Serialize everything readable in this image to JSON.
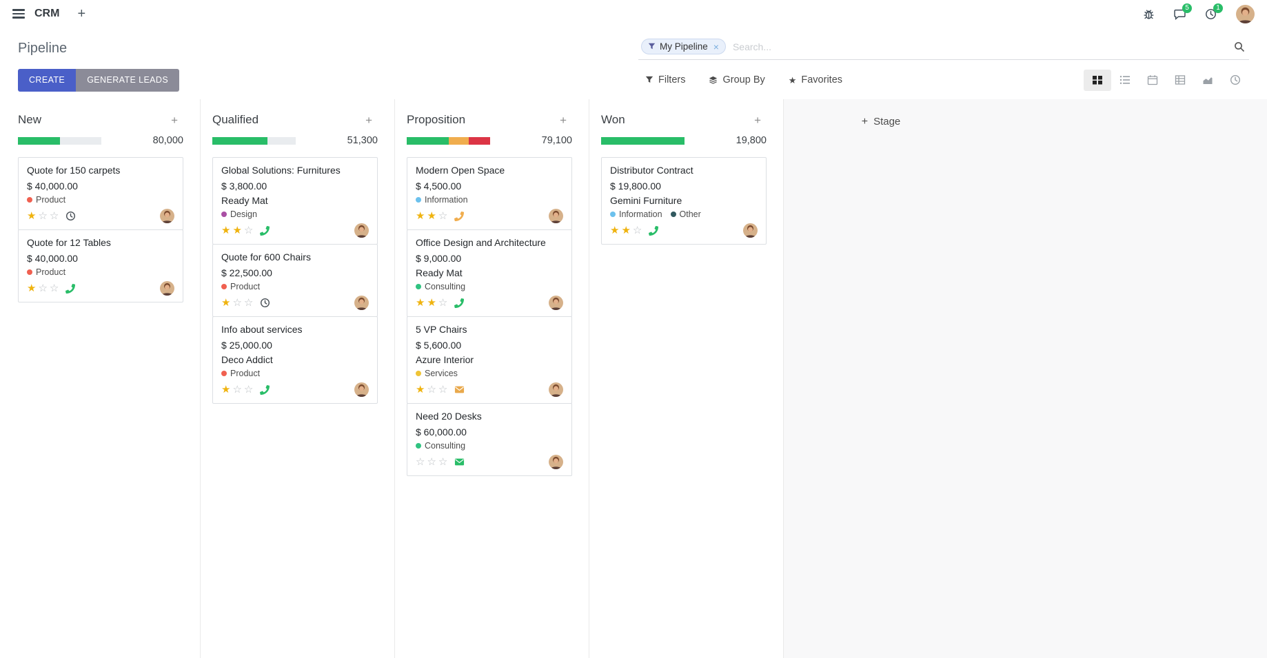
{
  "topbar": {
    "app_name": "CRM",
    "message_badge": "5",
    "activity_badge": "1"
  },
  "control_panel": {
    "title": "Pipeline",
    "create_label": "CREATE",
    "generate_leads_label": "GENERATE LEADS",
    "filters_label": "Filters",
    "group_by_label": "Group By",
    "favorites_label": "Favorites",
    "search": {
      "facet_label": "My Pipeline",
      "placeholder": "Search..."
    }
  },
  "icons": {
    "plus": "+",
    "close": "×",
    "star_filled": "★",
    "star_empty": "☆"
  },
  "colors": {
    "primary": "#4a5fc8",
    "success": "#29bd68",
    "warning": "#f0ad4e",
    "danger": "#dc3545"
  },
  "kanban": {
    "add_stage_label": "Stage",
    "columns": [
      {
        "name": "New",
        "total": "80,000",
        "progress": [
          {
            "color": "#29bd68",
            "pct": 50
          }
        ],
        "cards": [
          {
            "title": "Quote for 150 carpets",
            "amount": "$ 40,000.00",
            "partner": "",
            "tags": [
              {
                "label": "Product",
                "color": "#f06050"
              }
            ],
            "stars": 1,
            "activity": {
              "icon": "clock",
              "color": "#495057"
            }
          },
          {
            "title": "Quote for 12 Tables",
            "amount": "$ 40,000.00",
            "partner": "",
            "tags": [
              {
                "label": "Product",
                "color": "#f06050"
              }
            ],
            "stars": 1,
            "activity": {
              "icon": "phone",
              "color": "#29bd68"
            }
          }
        ]
      },
      {
        "name": "Qualified",
        "total": "51,300",
        "progress": [
          {
            "color": "#29bd68",
            "pct": 66
          }
        ],
        "cards": [
          {
            "title": "Global Solutions: Furnitures",
            "amount": "$ 3,800.00",
            "partner": "Ready Mat",
            "tags": [
              {
                "label": "Design",
                "color": "#a94fa4"
              }
            ],
            "stars": 2,
            "activity": {
              "icon": "phone",
              "color": "#29bd68"
            }
          },
          {
            "title": "Quote for 600 Chairs",
            "amount": "$ 22,500.00",
            "partner": "",
            "tags": [
              {
                "label": "Product",
                "color": "#f06050"
              }
            ],
            "stars": 1,
            "activity": {
              "icon": "clock",
              "color": "#495057"
            }
          },
          {
            "title": "Info about services",
            "amount": "$ 25,000.00",
            "partner": "Deco Addict",
            "tags": [
              {
                "label": "Product",
                "color": "#f06050"
              }
            ],
            "stars": 1,
            "activity": {
              "icon": "phone",
              "color": "#29bd68"
            }
          }
        ]
      },
      {
        "name": "Proposition",
        "total": "79,100",
        "progress": [
          {
            "color": "#29bd68",
            "pct": 50
          },
          {
            "color": "#f0ad4e",
            "pct": 24
          },
          {
            "color": "#dc3545",
            "pct": 26
          }
        ],
        "cards": [
          {
            "title": "Modern Open Space",
            "amount": "$ 4,500.00",
            "partner": "",
            "tags": [
              {
                "label": "Information",
                "color": "#6cc1ed"
              }
            ],
            "stars": 2,
            "activity": {
              "icon": "phone",
              "color": "#f0ad4e"
            }
          },
          {
            "title": "Office Design and Architecture",
            "amount": "$ 9,000.00",
            "partner": "Ready Mat",
            "tags": [
              {
                "label": "Consulting",
                "color": "#30c381"
              }
            ],
            "stars": 2,
            "activity": {
              "icon": "phone",
              "color": "#29bd68"
            }
          },
          {
            "title": "5 VP Chairs",
            "amount": "$ 5,600.00",
            "partner": "Azure Interior",
            "tags": [
              {
                "label": "Services",
                "color": "#efc437"
              }
            ],
            "stars": 1,
            "activity": {
              "icon": "envelope",
              "color": "#e9a94c"
            }
          },
          {
            "title": "Need 20 Desks",
            "amount": "$ 60,000.00",
            "partner": "",
            "tags": [
              {
                "label": "Consulting",
                "color": "#30c381"
              }
            ],
            "stars": 0,
            "activity": {
              "icon": "envelope",
              "color": "#29bd68"
            }
          }
        ]
      },
      {
        "name": "Won",
        "total": "19,800",
        "progress": [
          {
            "color": "#29bd68",
            "pct": 100
          }
        ],
        "cards": [
          {
            "title": "Distributor Contract",
            "amount": "$ 19,800.00",
            "partner": "Gemini Furniture",
            "tags": [
              {
                "label": "Information",
                "color": "#6cc1ed"
              },
              {
                "label": "Other",
                "color": "#31595f"
              }
            ],
            "stars": 2,
            "activity": {
              "icon": "phone",
              "color": "#29bd68"
            }
          }
        ]
      }
    ]
  }
}
